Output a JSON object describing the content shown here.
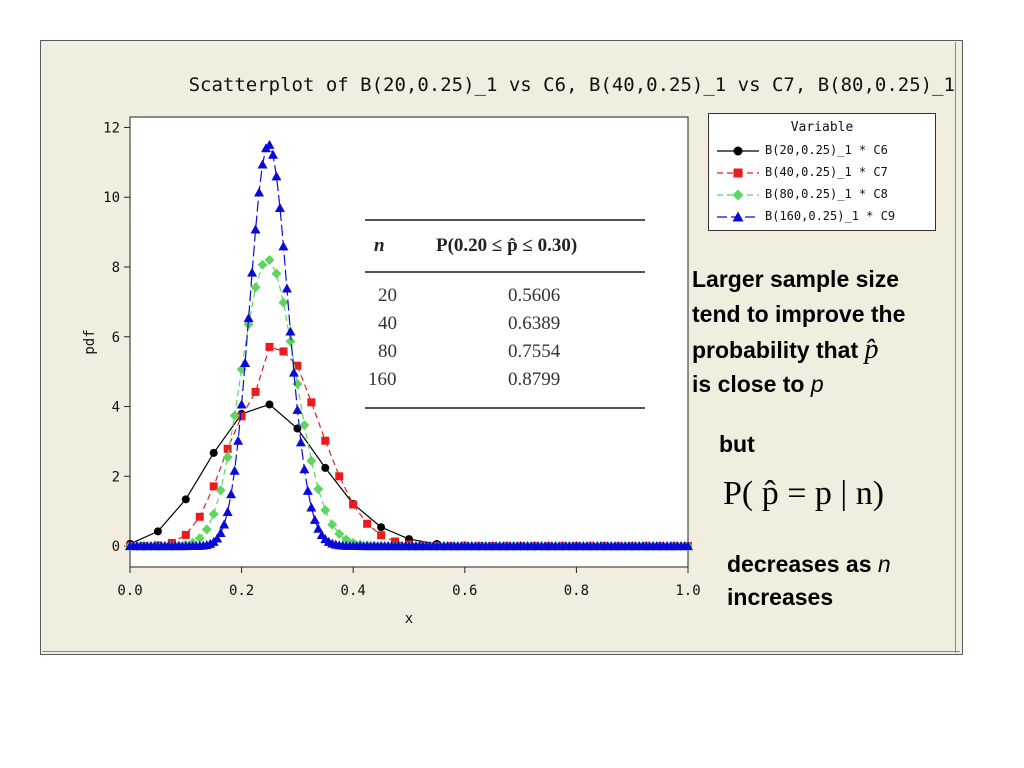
{
  "chart_data": {
    "type": "scatter",
    "title": "Scatterplot of B(20,0.25)_1 vs C6, B(40,0.25)_1 vs C7, B(80,0.25)_1",
    "xlabel": "x",
    "ylabel": "pdf",
    "xlim": [
      0,
      1
    ],
    "ylim": [
      -0.6,
      12.3
    ],
    "xticks": [
      "0.0",
      "0.2",
      "0.4",
      "0.6",
      "0.8",
      "1.0"
    ],
    "yticks": [
      "0",
      "2",
      "4",
      "6",
      "8",
      "10",
      "12"
    ],
    "legend_position": "top-right",
    "legend_title": "Variable",
    "series": [
      {
        "name": "B(20,0.25)_1 * C6",
        "n": 20,
        "color": "#000000",
        "marker": "circle",
        "dash": "solid",
        "x": [
          0.0,
          0.05,
          0.1,
          0.15,
          0.2,
          0.25,
          0.3,
          0.35,
          0.4,
          0.45,
          0.5,
          0.55,
          0.6,
          0.65,
          0.7,
          0.75,
          0.8,
          0.85,
          0.9,
          0.95,
          1.0
        ],
        "y": [
          0.063,
          0.42,
          1.34,
          2.67,
          3.79,
          4.06,
          3.37,
          2.24,
          1.21,
          0.54,
          0.2,
          0.06,
          0.015,
          0.003,
          0.0,
          0.0,
          0.0,
          0.0,
          0.0,
          0.0,
          0.0
        ]
      },
      {
        "name": "B(40,0.25)_1 * C7",
        "n": 40,
        "color": "#e81c1c",
        "marker": "square",
        "dash": "dashed",
        "x": [
          0.0,
          0.025,
          0.05,
          0.075,
          0.1,
          0.125,
          0.15,
          0.175,
          0.2,
          0.225,
          0.25,
          0.275,
          0.3,
          0.325,
          0.35,
          0.375,
          0.4,
          0.425,
          0.45,
          0.475,
          0.5,
          0.525,
          0.55,
          0.575,
          0.6,
          0.625,
          0.65,
          0.675,
          0.7,
          0.725,
          0.75,
          0.775,
          0.8,
          0.825,
          0.85,
          0.875,
          0.9,
          0.925,
          0.95,
          0.975,
          1.0
        ],
        "y": [
          0.0,
          0.0,
          0.02,
          0.09,
          0.32,
          0.84,
          1.71,
          2.79,
          3.72,
          4.42,
          5.71,
          5.58,
          5.17,
          4.12,
          3.02,
          2.0,
          1.19,
          0.64,
          0.31,
          0.13,
          0.05,
          0.02,
          0.005,
          0.0,
          0.0,
          0.0,
          0.0,
          0.0,
          0.0,
          0.0,
          0.0,
          0.0,
          0.0,
          0.0,
          0.0,
          0.0,
          0.0,
          0.0,
          0.0,
          0.0,
          0.0
        ]
      },
      {
        "name": "B(80,0.25)_1 * C8",
        "n": 80,
        "color": "#5fd45f",
        "marker": "diamond",
        "dash": "dashed",
        "x": [],
        "y": [],
        "peak": 8.2
      },
      {
        "name": "B(160,0.25)_1 * C9",
        "n": 160,
        "color": "#0a0ad8",
        "marker": "triangle",
        "dash": "longdash",
        "x": [],
        "y": [],
        "peak": 11.5
      }
    ]
  },
  "inset_table": {
    "headers": [
      "n",
      "P(0.20 ≤ p̂ ≤ 0.30)"
    ],
    "rows": [
      [
        "20",
        "0.5606"
      ],
      [
        "40",
        "0.6389"
      ],
      [
        "80",
        "0.7554"
      ],
      [
        "160",
        "0.8799"
      ]
    ]
  },
  "annotation": {
    "line1": "Larger sample size",
    "line2": "tend to improve the",
    "line3_prefix": "probability that ",
    "line4_prefix": "is close to ",
    "p_symbol": "p",
    "p_hat": "p̂",
    "but": "but",
    "formula": "P( p̂ = p | n)",
    "bottom_line1_prefix": "decreases as ",
    "n_symbol": "n",
    "bottom_line2": "increases"
  }
}
